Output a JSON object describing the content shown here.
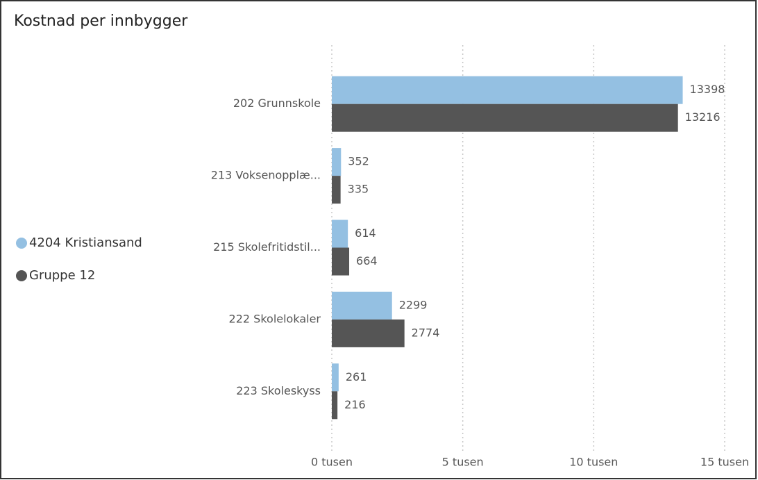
{
  "chart_data": {
    "type": "hbar",
    "title": "Kostnad per innbygger",
    "categories": [
      "202 Grunnskole",
      "213 Voksenopplæ...",
      "215 Skolefritidstil...",
      "222 Skolelokaler",
      "223 Skoleskyss"
    ],
    "series": [
      {
        "name": "4204 Kristiansand",
        "color": "#94c0e2",
        "values": [
          13398,
          352,
          614,
          2299,
          261
        ]
      },
      {
        "name": "Gruppe 12",
        "color": "#555555",
        "values": [
          13216,
          335,
          664,
          2774,
          216
        ]
      }
    ],
    "xlim": [
      0,
      15000
    ],
    "xticks": [
      {
        "value": 0,
        "label": "0 tusen"
      },
      {
        "value": 5000,
        "label": "5 tusen"
      },
      {
        "value": 10000,
        "label": "10 tusen"
      },
      {
        "value": 15000,
        "label": "15 tusen"
      }
    ],
    "grid": true,
    "legend": "left"
  }
}
